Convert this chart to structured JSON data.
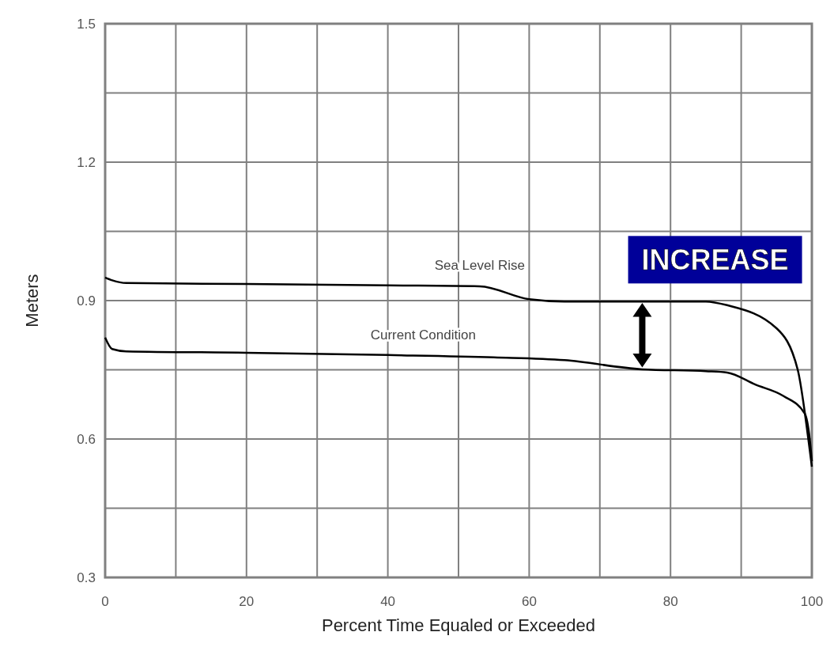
{
  "chart_data": {
    "type": "line",
    "xlabel": "Percent Time Equaled or Exceeded",
    "ylabel": "Meters",
    "xlim": [
      0,
      100
    ],
    "xticks": [
      0,
      {
        "value": 10,
        "label": null
      },
      20,
      {
        "value": 30,
        "label": null
      },
      40,
      {
        "value": 50,
        "label": null
      },
      60,
      {
        "value": 70,
        "label": null
      },
      80,
      {
        "value": 90,
        "label": null
      },
      100
    ],
    "ylim": [
      0.3,
      1.5
    ],
    "yticks": [
      {
        "value": 0.3,
        "label": "0.3"
      },
      {
        "value": 0.45,
        "label": null
      },
      {
        "value": 0.6,
        "label": "0.6"
      },
      {
        "value": 0.75,
        "label": null
      },
      {
        "value": 0.9,
        "label": "0.9"
      },
      {
        "value": 1.05,
        "label": null
      },
      {
        "value": 1.2,
        "label": "1.2"
      },
      {
        "value": 1.35,
        "label": null
      },
      {
        "value": 1.5,
        "label": "1.5"
      }
    ],
    "grid": true,
    "marker": "none",
    "line_style": "solid",
    "series": [
      {
        "name": "Sea Level Rise",
        "color": "#000000",
        "x": [
          0,
          1,
          3,
          20,
          40,
          53,
          60,
          65,
          85,
          88,
          95,
          98,
          99.5,
          100
        ],
        "values": [
          0.95,
          0.944,
          0.938,
          0.936,
          0.933,
          0.931,
          0.903,
          0.898,
          0.898,
          0.89,
          0.84,
          0.75,
          0.6,
          0.54
        ]
      },
      {
        "name": "Current Condition",
        "color": "#000000",
        "x": [
          0,
          1,
          3,
          20,
          40,
          55,
          65,
          76,
          85,
          88,
          92,
          96,
          99,
          99.7,
          100
        ],
        "values": [
          0.82,
          0.795,
          0.79,
          0.787,
          0.782,
          0.777,
          0.771,
          0.751,
          0.747,
          0.744,
          0.718,
          0.693,
          0.655,
          0.6,
          0.552
        ]
      }
    ],
    "annotations": [
      "INCREASE"
    ]
  }
}
